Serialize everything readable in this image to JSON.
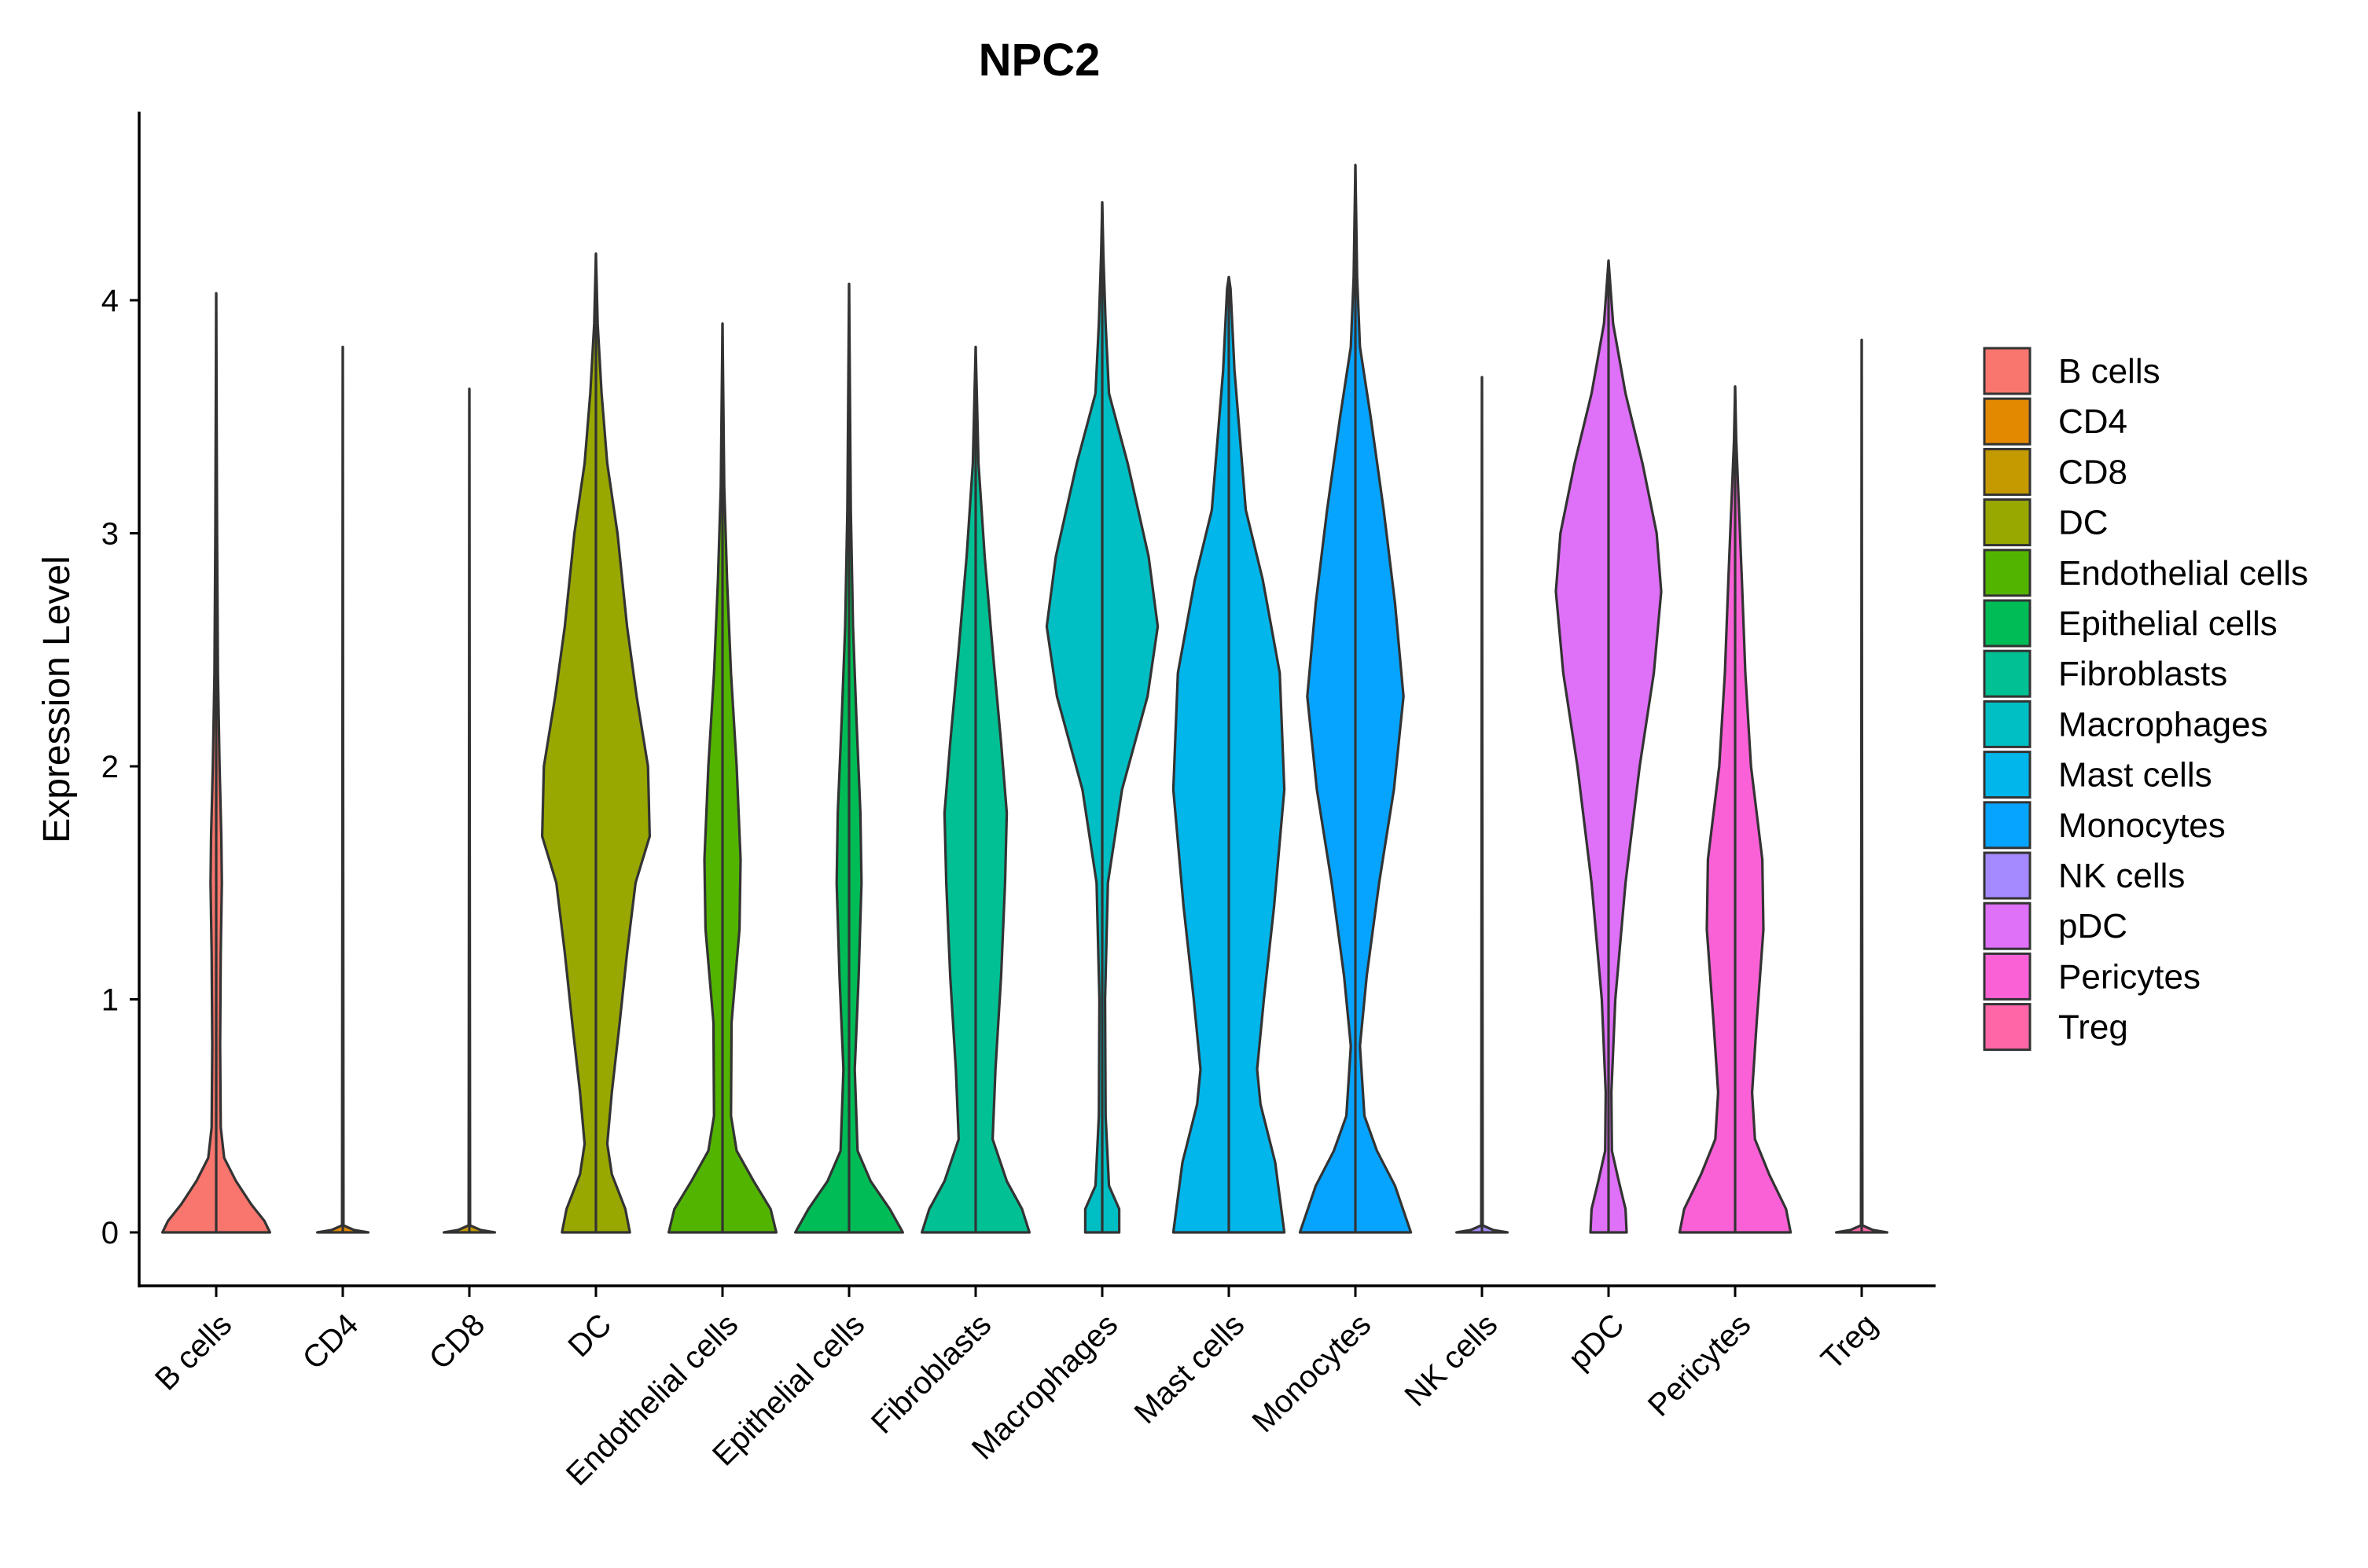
{
  "chart_data": {
    "type": "violin",
    "title": "NPC2",
    "xlabel": "",
    "ylabel": "Expression Level",
    "ylim": [
      -0.22,
      4.8
    ],
    "yticks": [
      0,
      1,
      2,
      3,
      4
    ],
    "grid": false,
    "legend_position": "right",
    "categories": [
      "B cells",
      "CD4",
      "CD8",
      "DC",
      "Endothelial cells",
      "Epithelial cells",
      "Fibroblasts",
      "Macrophages",
      "Mast cells",
      "Monocytes",
      "NK cells",
      "pDC",
      "Pericytes",
      "Treg"
    ],
    "legend": [
      "B cells",
      "CD4",
      "CD8",
      "DC",
      "Endothelial cells",
      "Epithelial cells",
      "Fibroblasts",
      "Macrophages",
      "Mast cells",
      "Monocytes",
      "NK cells",
      "pDC",
      "Pericytes",
      "Treg"
    ],
    "colors": [
      "#F8766D",
      "#E38900",
      "#C49A00",
      "#99A800",
      "#53B400",
      "#00BC56",
      "#00C094",
      "#00BFC4",
      "#00B6EB",
      "#06A4FF",
      "#A58AFF",
      "#DF70F8",
      "#FB61D7",
      "#FF66A8"
    ],
    "series": [
      {
        "name": "B cells",
        "max": 4.03,
        "density": [
          [
            0.0,
            0.95
          ],
          [
            0.05,
            0.85
          ],
          [
            0.12,
            0.62
          ],
          [
            0.22,
            0.35
          ],
          [
            0.32,
            0.14
          ],
          [
            0.45,
            0.08
          ],
          [
            0.8,
            0.07
          ],
          [
            1.2,
            0.08
          ],
          [
            1.5,
            0.1
          ],
          [
            1.7,
            0.09
          ],
          [
            2.0,
            0.06
          ],
          [
            2.4,
            0.03
          ],
          [
            3.0,
            0.015
          ],
          [
            4.03,
            0.0
          ]
        ]
      },
      {
        "name": "CD4",
        "max": 3.8,
        "density": [
          [
            0.0,
            0.45
          ],
          [
            0.01,
            0.2
          ],
          [
            0.03,
            0.012
          ],
          [
            3.8,
            0.0
          ]
        ]
      },
      {
        "name": "CD8",
        "max": 3.62,
        "density": [
          [
            0.0,
            0.45
          ],
          [
            0.01,
            0.2
          ],
          [
            0.03,
            0.012
          ],
          [
            3.62,
            0.0
          ]
        ]
      },
      {
        "name": "DC",
        "max": 4.2,
        "density": [
          [
            0.0,
            0.6
          ],
          [
            0.1,
            0.52
          ],
          [
            0.25,
            0.28
          ],
          [
            0.38,
            0.2
          ],
          [
            0.6,
            0.28
          ],
          [
            0.9,
            0.42
          ],
          [
            1.2,
            0.55
          ],
          [
            1.5,
            0.7
          ],
          [
            1.7,
            0.95
          ],
          [
            2.0,
            0.92
          ],
          [
            2.3,
            0.72
          ],
          [
            2.6,
            0.55
          ],
          [
            3.0,
            0.38
          ],
          [
            3.3,
            0.2
          ],
          [
            3.6,
            0.1
          ],
          [
            3.9,
            0.03
          ],
          [
            4.2,
            0.0
          ]
        ]
      },
      {
        "name": "Endothelial cells",
        "max": 3.9,
        "density": [
          [
            0.0,
            0.95
          ],
          [
            0.1,
            0.85
          ],
          [
            0.22,
            0.55
          ],
          [
            0.35,
            0.25
          ],
          [
            0.5,
            0.15
          ],
          [
            0.9,
            0.16
          ],
          [
            1.3,
            0.3
          ],
          [
            1.6,
            0.32
          ],
          [
            2.0,
            0.25
          ],
          [
            2.4,
            0.15
          ],
          [
            2.8,
            0.08
          ],
          [
            3.2,
            0.03
          ],
          [
            3.9,
            0.0
          ]
        ]
      },
      {
        "name": "Epithelial cells",
        "max": 4.07,
        "density": [
          [
            0.0,
            0.95
          ],
          [
            0.1,
            0.72
          ],
          [
            0.22,
            0.38
          ],
          [
            0.35,
            0.15
          ],
          [
            0.7,
            0.1
          ],
          [
            1.1,
            0.17
          ],
          [
            1.5,
            0.22
          ],
          [
            1.8,
            0.2
          ],
          [
            2.2,
            0.13
          ],
          [
            2.6,
            0.07
          ],
          [
            3.1,
            0.03
          ],
          [
            4.07,
            0.0
          ]
        ]
      },
      {
        "name": "Fibroblasts",
        "max": 3.8,
        "density": [
          [
            0.0,
            0.95
          ],
          [
            0.1,
            0.82
          ],
          [
            0.22,
            0.55
          ],
          [
            0.4,
            0.3
          ],
          [
            0.7,
            0.35
          ],
          [
            1.1,
            0.45
          ],
          [
            1.5,
            0.52
          ],
          [
            1.8,
            0.55
          ],
          [
            2.1,
            0.45
          ],
          [
            2.5,
            0.3
          ],
          [
            2.9,
            0.16
          ],
          [
            3.3,
            0.05
          ],
          [
            3.8,
            0.0
          ]
        ]
      },
      {
        "name": "Macrophages",
        "max": 4.42,
        "density": [
          [
            0.0,
            0.3
          ],
          [
            0.1,
            0.3
          ],
          [
            0.2,
            0.12
          ],
          [
            0.5,
            0.06
          ],
          [
            1.0,
            0.05
          ],
          [
            1.5,
            0.1
          ],
          [
            1.9,
            0.35
          ],
          [
            2.3,
            0.8
          ],
          [
            2.6,
            0.98
          ],
          [
            2.9,
            0.82
          ],
          [
            3.3,
            0.45
          ],
          [
            3.6,
            0.12
          ],
          [
            3.9,
            0.06
          ],
          [
            4.2,
            0.02
          ],
          [
            4.42,
            0.0
          ]
        ]
      },
      {
        "name": "Mast cells",
        "max": 4.1,
        "density": [
          [
            0.0,
            0.98
          ],
          [
            0.3,
            0.82
          ],
          [
            0.55,
            0.56
          ],
          [
            0.7,
            0.5
          ],
          [
            1.0,
            0.62
          ],
          [
            1.4,
            0.8
          ],
          [
            1.9,
            0.98
          ],
          [
            2.4,
            0.9
          ],
          [
            2.8,
            0.6
          ],
          [
            3.1,
            0.3
          ],
          [
            3.4,
            0.2
          ],
          [
            3.7,
            0.1
          ],
          [
            4.05,
            0.03
          ],
          [
            4.1,
            0.0
          ]
        ]
      },
      {
        "name": "Monocytes",
        "max": 4.58,
        "density": [
          [
            0.0,
            0.98
          ],
          [
            0.2,
            0.7
          ],
          [
            0.35,
            0.38
          ],
          [
            0.5,
            0.16
          ],
          [
            0.8,
            0.08
          ],
          [
            1.1,
            0.2
          ],
          [
            1.5,
            0.42
          ],
          [
            1.9,
            0.68
          ],
          [
            2.3,
            0.85
          ],
          [
            2.7,
            0.7
          ],
          [
            3.1,
            0.5
          ],
          [
            3.5,
            0.27
          ],
          [
            3.8,
            0.08
          ],
          [
            4.1,
            0.03
          ],
          [
            4.58,
            0.0
          ]
        ]
      },
      {
        "name": "NK cells",
        "max": 3.67,
        "density": [
          [
            0.0,
            0.45
          ],
          [
            0.01,
            0.2
          ],
          [
            0.03,
            0.012
          ],
          [
            3.67,
            0.0
          ]
        ]
      },
      {
        "name": "pDC",
        "max": 4.17,
        "density": [
          [
            0.0,
            0.32
          ],
          [
            0.1,
            0.3
          ],
          [
            0.22,
            0.18
          ],
          [
            0.35,
            0.06
          ],
          [
            0.6,
            0.05
          ],
          [
            1.0,
            0.12
          ],
          [
            1.5,
            0.3
          ],
          [
            2.0,
            0.55
          ],
          [
            2.4,
            0.8
          ],
          [
            2.75,
            0.93
          ],
          [
            3.0,
            0.85
          ],
          [
            3.3,
            0.6
          ],
          [
            3.6,
            0.3
          ],
          [
            3.9,
            0.08
          ],
          [
            4.17,
            0.0
          ]
        ]
      },
      {
        "name": "Pericytes",
        "max": 3.63,
        "density": [
          [
            0.0,
            0.98
          ],
          [
            0.1,
            0.9
          ],
          [
            0.25,
            0.6
          ],
          [
            0.4,
            0.35
          ],
          [
            0.6,
            0.3
          ],
          [
            0.9,
            0.38
          ],
          [
            1.3,
            0.5
          ],
          [
            1.6,
            0.48
          ],
          [
            2.0,
            0.28
          ],
          [
            2.4,
            0.18
          ],
          [
            2.8,
            0.12
          ],
          [
            3.1,
            0.07
          ],
          [
            3.4,
            0.02
          ],
          [
            3.63,
            0.0
          ]
        ]
      },
      {
        "name": "Treg",
        "max": 3.83,
        "density": [
          [
            0.0,
            0.45
          ],
          [
            0.01,
            0.2
          ],
          [
            0.03,
            0.012
          ],
          [
            3.83,
            0.0
          ]
        ]
      }
    ]
  }
}
